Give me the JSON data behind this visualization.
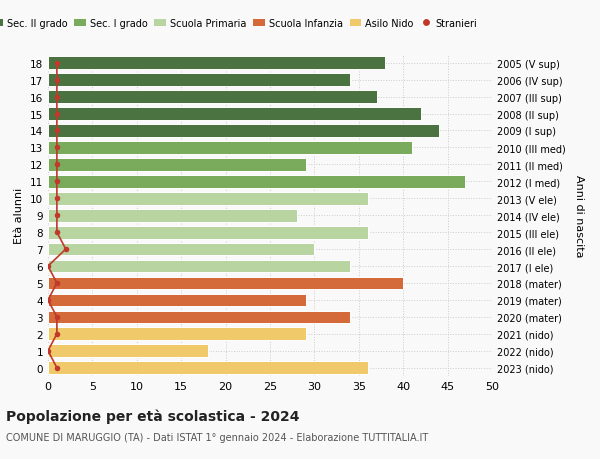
{
  "ages": [
    18,
    17,
    16,
    15,
    14,
    13,
    12,
    11,
    10,
    9,
    8,
    7,
    6,
    5,
    4,
    3,
    2,
    1,
    0
  ],
  "years": [
    "2005 (V sup)",
    "2006 (IV sup)",
    "2007 (III sup)",
    "2008 (II sup)",
    "2009 (I sup)",
    "2010 (III med)",
    "2011 (II med)",
    "2012 (I med)",
    "2013 (V ele)",
    "2014 (IV ele)",
    "2015 (III ele)",
    "2016 (II ele)",
    "2017 (I ele)",
    "2018 (mater)",
    "2019 (mater)",
    "2020 (mater)",
    "2021 (nido)",
    "2022 (nido)",
    "2023 (nido)"
  ],
  "bar_values": [
    38,
    34,
    37,
    42,
    44,
    41,
    29,
    47,
    36,
    28,
    36,
    30,
    34,
    40,
    29,
    34,
    29,
    18,
    36
  ],
  "bar_colors": [
    "#4a7341",
    "#4a7341",
    "#4a7341",
    "#4a7341",
    "#4a7341",
    "#7aab5c",
    "#7aab5c",
    "#7aab5c",
    "#b8d4a0",
    "#b8d4a0",
    "#b8d4a0",
    "#b8d4a0",
    "#b8d4a0",
    "#d4693a",
    "#d4693a",
    "#d4693a",
    "#f0c96a",
    "#f0c96a",
    "#f0c96a"
  ],
  "stranieri_values": [
    1,
    1,
    1,
    1,
    1,
    1,
    1,
    1,
    1,
    1,
    1,
    2,
    0,
    1,
    0,
    1,
    1,
    0,
    1
  ],
  "legend_labels": [
    "Sec. II grado",
    "Sec. I grado",
    "Scuola Primaria",
    "Scuola Infanzia",
    "Asilo Nido",
    "Stranieri"
  ],
  "legend_colors": [
    "#4a7341",
    "#7aab5c",
    "#b8d4a0",
    "#d4693a",
    "#f0c96a",
    "#c0392b"
  ],
  "title": "Popolazione per età scolastica - 2024",
  "subtitle": "COMUNE DI MARUGGIO (TA) - Dati ISTAT 1° gennaio 2024 - Elaborazione TUTTITALIA.IT",
  "ylabel_left": "Età alunni",
  "ylabel_right": "Anni di nascita",
  "xlim": [
    0,
    50
  ],
  "xticks": [
    0,
    5,
    10,
    15,
    20,
    25,
    30,
    35,
    40,
    45,
    50
  ],
  "bg_color": "#f9f9f9",
  "stranieri_color": "#c0392b"
}
